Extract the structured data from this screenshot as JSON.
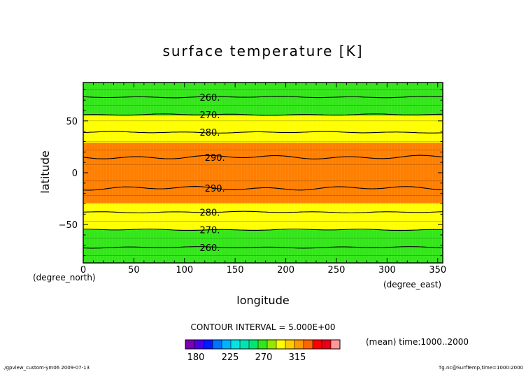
{
  "chart_data": {
    "type": "contour",
    "title": "surface temperature [K]",
    "xlabel": "longitude",
    "ylabel": "latitude",
    "x_unit": "(degree_east)",
    "y_unit": "(degree_north)",
    "xlim": [
      0,
      355
    ],
    "ylim": [
      -87,
      87
    ],
    "x_ticks": [
      0,
      50,
      100,
      150,
      200,
      250,
      300,
      350
    ],
    "y_ticks": [
      -50,
      0,
      50
    ],
    "bands": [
      {
        "lat_min": -87,
        "lat_max": -55,
        "range": "255-270",
        "color": "#33e619"
      },
      {
        "lat_min": -55,
        "lat_max": -29,
        "range": "270-285",
        "color": "#ffff00"
      },
      {
        "lat_min": -29,
        "lat_max": 29,
        "range": "285-300",
        "color": "#ff7f00"
      },
      {
        "lat_min": 29,
        "lat_max": 55,
        "range": "270-285",
        "color": "#ffff00"
      },
      {
        "lat_min": 55,
        "lat_max": 87,
        "range": "255-270",
        "color": "#33e619"
      }
    ],
    "contours": [
      {
        "level": 290,
        "lat": 15
      },
      {
        "level": 290,
        "lat": -15
      },
      {
        "level": 280,
        "lat": 39
      },
      {
        "level": 280,
        "lat": -38
      },
      {
        "level": 270,
        "lat": 56
      },
      {
        "level": 270,
        "lat": -55
      },
      {
        "level": 260,
        "lat": 73
      },
      {
        "level": 260,
        "lat": -72
      }
    ],
    "contour_labels": [
      {
        "text": "260.",
        "lon": 125,
        "lat": 73
      },
      {
        "text": "270.",
        "lon": 125,
        "lat": 56
      },
      {
        "text": "280.",
        "lon": 125,
        "lat": 39
      },
      {
        "text": "290.",
        "lon": 130,
        "lat": 15
      },
      {
        "text": "290.",
        "lon": 130,
        "lat": -15
      },
      {
        "text": "280.",
        "lon": 125,
        "lat": -38
      },
      {
        "text": "270.",
        "lon": 125,
        "lat": -55
      },
      {
        "text": "260.",
        "lon": 125,
        "lat": -72
      }
    ]
  },
  "contour_interval": "CONTOUR INTERVAL = 5.000E+00",
  "mean_note": "(mean) time:1000..2000",
  "colorbar": {
    "colors": [
      "#7a00b3",
      "#4b00e6",
      "#0019ff",
      "#0073ff",
      "#00b3ff",
      "#00e6e6",
      "#00e6b3",
      "#00e673",
      "#33e619",
      "#99e600",
      "#ffff00",
      "#ffcc00",
      "#ff9900",
      "#ff6600",
      "#ff0000",
      "#e6001a",
      "#ff9999"
    ],
    "labels": [
      "180",
      "225",
      "270",
      "315"
    ]
  },
  "footer": {
    "left": "./gpview_custom-ym06  2009-07-13",
    "right": "Tg.nc@SurfTemp,time=1000:2000"
  }
}
